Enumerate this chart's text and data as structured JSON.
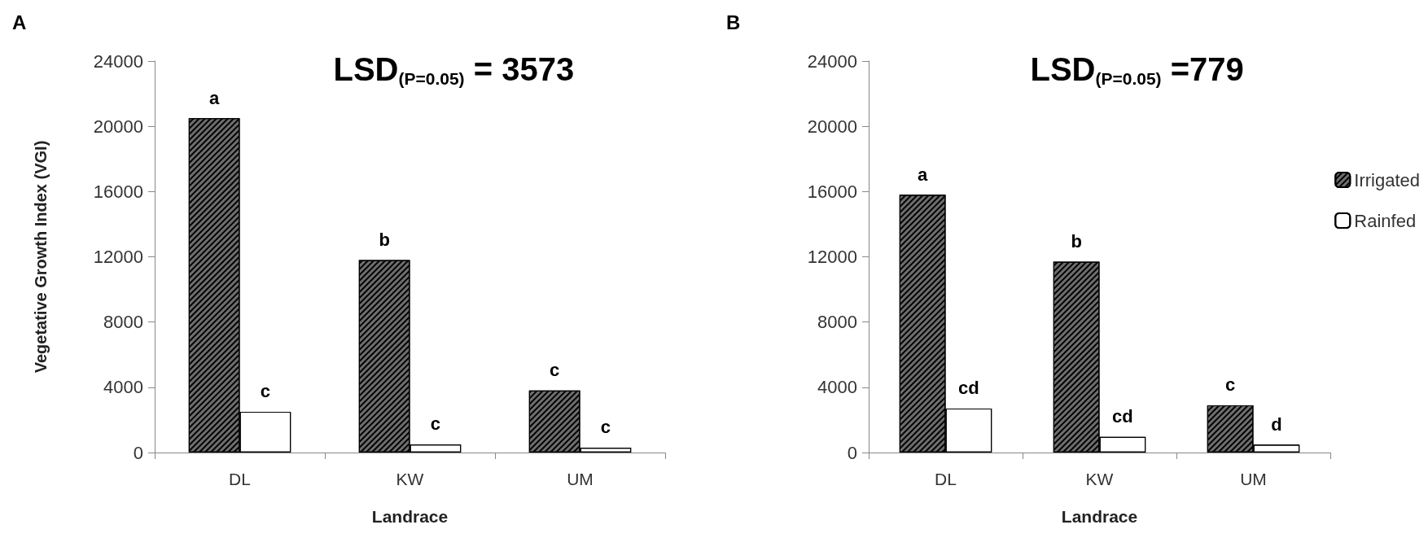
{
  "chart_data": [
    {
      "type": "bar",
      "title": "A",
      "xlabel": "Landrace",
      "ylabel": "Vegetative Growth Index (VGI)",
      "categories": [
        "DL",
        "KW",
        "UM"
      ],
      "series": [
        {
          "color": "#6e6e6e",
          "values": [
            20500,
            11800,
            3800
          ]
        },
        {
          "color": "#ffffff",
          "values": [
            2500,
            500,
            300
          ]
        }
      ],
      "ylim": [
        0,
        24000
      ],
      "yticks": [
        0,
        4000,
        8000,
        12000,
        16000,
        20000,
        24000
      ],
      "grid": false,
      "legend": false,
      "annotations": [
        "LSD$_{(P=0.05)}$ = 3573",
        {
          "text": "a",
          "x": "DL",
          "y": 20500
        },
        {
          "text": "c",
          "x": "DL",
          "y": 2500
        },
        {
          "text": "b",
          "x": "KW",
          "y": 11800
        },
        {
          "text": "c",
          "x": "KW",
          "y": 500
        },
        {
          "text": "c",
          "x": "UM",
          "y": 3800
        },
        {
          "text": "c",
          "x": "UM",
          "y": 300
        }
      ]
    },
    {
      "type": "bar",
      "title": "B",
      "xlabel": "Landrace",
      "categories": [
        "DL",
        "KW",
        "UM"
      ],
      "series": [
        {
          "name": "Irrigated",
          "color": "#6e6e6e",
          "values": [
            15800,
            11700,
            2900
          ]
        },
        {
          "name": "Rainfed",
          "color": "#ffffff",
          "values": [
            2700,
            960,
            490
          ]
        }
      ],
      "ylim": [
        0,
        24000
      ],
      "yticks": [
        0,
        4000,
        8000,
        12000,
        16000,
        20000,
        24000
      ],
      "grid": false,
      "legend": "right",
      "annotations": [
        "LSD$_{(P=0.05)}$ =779",
        {
          "text": "a",
          "x": "DL",
          "y": 15800
        },
        {
          "text": "cd",
          "x": "DL",
          "y": 2700
        },
        {
          "text": "b",
          "x": "KW",
          "y": 11700
        },
        {
          "text": "cd",
          "x": "KW",
          "y": 960
        },
        {
          "text": "c",
          "x": "UM",
          "y": 2900
        },
        {
          "text": "d",
          "x": "UM",
          "y": 490
        }
      ]
    }
  ]
}
